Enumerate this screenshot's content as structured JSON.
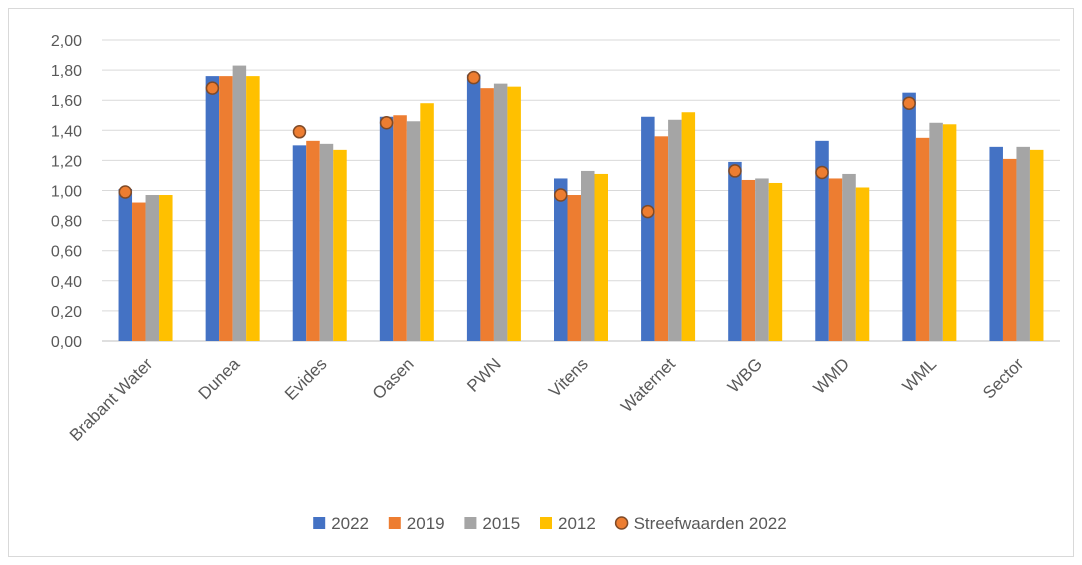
{
  "chart_data": {
    "type": "bar",
    "categories": [
      "Brabant Water",
      "Dunea",
      "Evides",
      "Oasen",
      "PWN",
      "Vitens",
      "Waternet",
      "WBG",
      "WMD",
      "WML",
      "Sector"
    ],
    "series": [
      {
        "name": "2022",
        "color": "#4472C4",
        "values": [
          1.01,
          1.76,
          1.3,
          1.49,
          1.77,
          1.08,
          1.49,
          1.19,
          1.33,
          1.65,
          1.29
        ]
      },
      {
        "name": "2019",
        "color": "#ED7D31",
        "values": [
          0.92,
          1.76,
          1.33,
          1.5,
          1.68,
          0.97,
          1.36,
          1.07,
          1.08,
          1.35,
          1.21
        ]
      },
      {
        "name": "2015",
        "color": "#A5A5A5",
        "values": [
          0.97,
          1.83,
          1.31,
          1.46,
          1.71,
          1.13,
          1.47,
          1.08,
          1.11,
          1.45,
          1.29
        ]
      },
      {
        "name": "2012",
        "color": "#FFC000",
        "values": [
          0.97,
          1.76,
          1.27,
          1.58,
          1.69,
          1.11,
          1.52,
          1.05,
          1.02,
          1.44,
          1.27
        ]
      }
    ],
    "targets": {
      "name": "Streefwaarden 2022",
      "color": "#ED7D31",
      "stroke": "#7F4A27",
      "values": [
        0.99,
        1.68,
        1.39,
        1.45,
        1.75,
        0.97,
        0.86,
        1.13,
        1.12,
        1.58,
        null
      ]
    },
    "ylim": [
      0,
      2.0
    ],
    "yticks": [
      "0,00",
      "0,20",
      "0,40",
      "0,60",
      "0,80",
      "1,00",
      "1,20",
      "1,40",
      "1,60",
      "1,80",
      "2,00"
    ],
    "grid": true,
    "legend_position": "bottom"
  }
}
